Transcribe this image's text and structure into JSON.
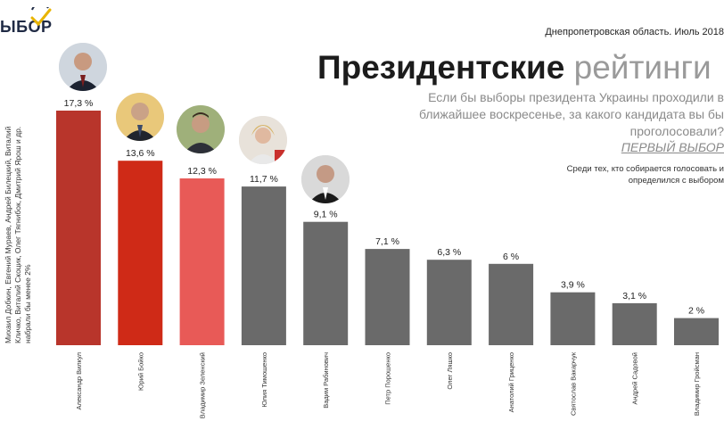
{
  "logo": {
    "text": "ЫБОР",
    "icon": "checkmark-icon",
    "accent": "#e8b400"
  },
  "side_note": "Михаил Добкин, Евгений Мураев, Андрей Билецкий, Виталий Кличко, Виталий Скоцик, Олег Тягнибок, Дмитрий Ярош и др. набрали бы менее 2%",
  "header": {
    "region": "Днепропетровская область. Июль 2018",
    "title_bold": "Президентские",
    "title_light": "рейтинги",
    "question": "Если бы выборы президента Украины проходили в ближайшее воскресенье, за какого кандидата вы бы проголосовали?",
    "brand": "ПЕРВЫЙ ВЫБОР",
    "subtitle": "Среди тех, кто собирается голосовать и определился с выбором"
  },
  "photos": [
    {
      "candidate": "Александр Вилкул",
      "icon": "portrait-icon"
    },
    {
      "candidate": "Юрий Бойко",
      "icon": "portrait-icon"
    },
    {
      "candidate": "Владимир Зеленский",
      "icon": "portrait-icon"
    },
    {
      "candidate": "Юлия Тимошенко",
      "icon": "portrait-icon"
    },
    {
      "candidate": "Вадим Рабинович",
      "icon": "portrait-icon"
    }
  ],
  "chart_data": {
    "type": "bar",
    "categories": [
      "Александр Вилкул",
      "Юрий Бойко",
      "Владимир Зеленский",
      "Юлия Тимошенко",
      "Вадим Рабинович",
      "Петр Порошенко",
      "Олег Ляшко",
      "Анатолий Гриценко",
      "Святослав Вакарчук",
      "Андрей Садовой",
      "Владимир Гройсман"
    ],
    "values": [
      17.3,
      13.6,
      12.3,
      11.7,
      9.1,
      7.1,
      6.3,
      6,
      3.9,
      3.1,
      2
    ],
    "value_labels": [
      "17,3 %",
      "13,6 %",
      "12,3 %",
      "11,7 %",
      "9,1 %",
      "7,1 %",
      "6,3 %",
      "6 %",
      "3,9 %",
      "3,1 %",
      "2 %"
    ],
    "bar_colors": [
      "#b8352b",
      "#cf2a17",
      "#e85a57",
      "#6a6a6a",
      "#6a6a6a",
      "#6a6a6a",
      "#6a6a6a",
      "#6a6a6a",
      "#6a6a6a",
      "#6a6a6a",
      "#6a6a6a"
    ],
    "ylim": [
      0,
      17.3
    ],
    "grid": false,
    "legend": "none"
  }
}
